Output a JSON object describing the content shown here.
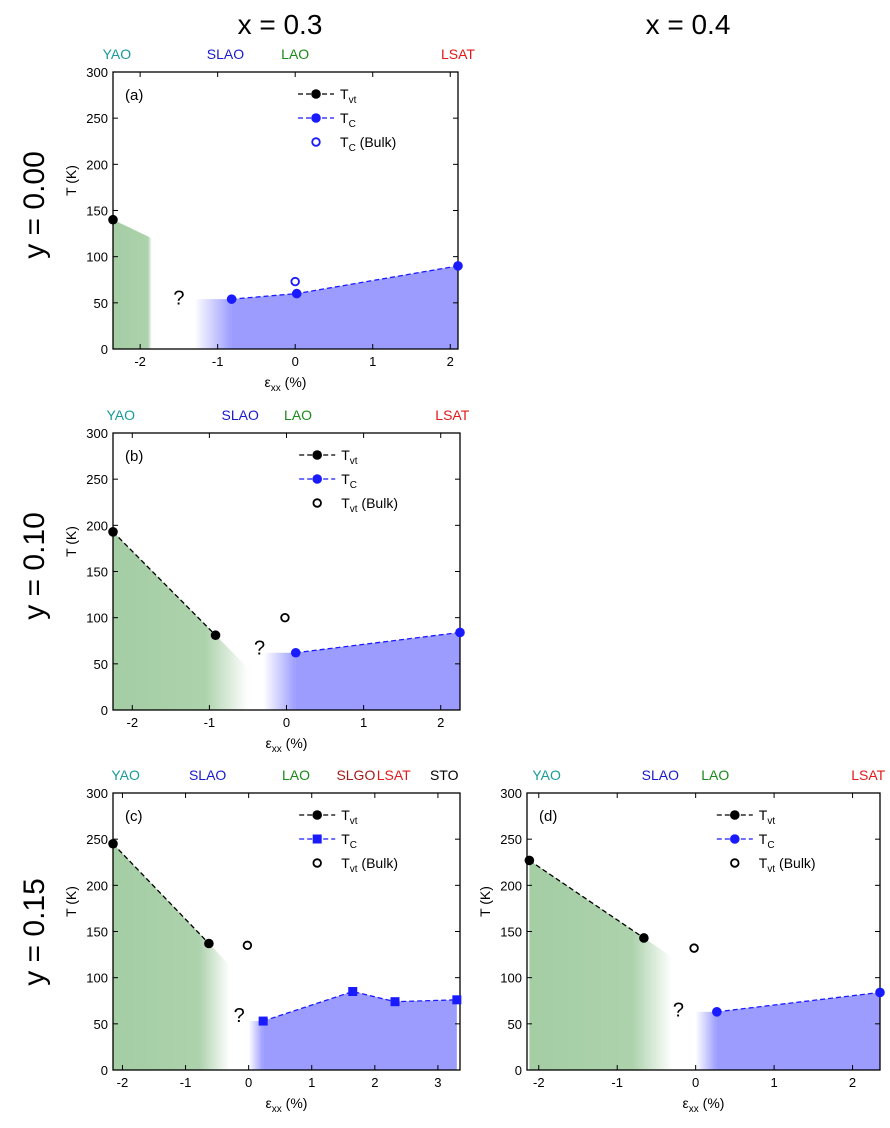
{
  "headers": {
    "col1": "x = 0.3",
    "col2": "x = 0.4"
  },
  "rows": [
    "y = 0.00",
    "y = 0.10",
    "y = 0.15"
  ],
  "colors": {
    "green": "#5aa55a",
    "blue": "#5a5aff",
    "tvt": "#000000",
    "tc": "#1a1aff",
    "YAO": "#1a9a9a",
    "SLAO": "#1a1acc",
    "LAO": "#1a8a1a",
    "LSAT": "#e01a1a",
    "SLGO": "#a01a1a",
    "STO": "#000000"
  },
  "chart_data": [
    {
      "type": "line",
      "panel": "(a)",
      "xlabel": "ε",
      "xlabel_sub": "xx",
      "xlabel_unit": "(%)",
      "ylabel": "T (K)",
      "xlim": [
        -2.35,
        2.1
      ],
      "ylim": [
        0,
        300
      ],
      "xticks": [
        -2,
        -1,
        0,
        1,
        2
      ],
      "yticks": [
        0,
        50,
        100,
        150,
        200,
        250,
        300
      ],
      "substrates": [
        {
          "name": "YAO",
          "x": -2.3
        },
        {
          "name": "SLAO",
          "x": -0.9
        },
        {
          "name": "LAO",
          "x": 0.0
        },
        {
          "name": "LSAT",
          "x": 2.1
        }
      ],
      "series": [
        {
          "name": "T",
          "sub": "vt",
          "marker": "circle",
          "color": "#000000",
          "points": [
            [
              -2.35,
              140
            ]
          ]
        },
        {
          "name": "T",
          "sub": "C",
          "marker": "circle",
          "color": "#1a1aff",
          "points": [
            [
              -0.82,
              54
            ],
            [
              0.02,
              60
            ],
            [
              2.1,
              90
            ]
          ]
        },
        {
          "name": "T",
          "sub": "C",
          "suffix": "(Bulk)",
          "marker": "open-circle",
          "color": "#1a1aff",
          "points": [
            [
              0.0,
              73
            ]
          ]
        }
      ],
      "green_region": {
        "x0": -2.35,
        "y0": 140,
        "x1": -1.85,
        "y1": 120
      },
      "blue_region": [
        [
          -0.82,
          54
        ],
        [
          0.02,
          60
        ],
        [
          2.1,
          90
        ]
      ],
      "blue_fade_from": -1.3,
      "question": {
        "text": "?",
        "x": -1.5,
        "y": 48
      }
    },
    {
      "type": "line",
      "panel": "(b)",
      "xlabel": "ε",
      "xlabel_sub": "xx",
      "xlabel_unit": "(%)",
      "ylabel": "T (K)",
      "xlim": [
        -2.25,
        2.25
      ],
      "ylim": [
        0,
        300
      ],
      "xticks": [
        -2,
        -1,
        0,
        1,
        2
      ],
      "yticks": [
        0,
        50,
        100,
        150,
        200,
        250,
        300
      ],
      "substrates": [
        {
          "name": "YAO",
          "x": -2.15
        },
        {
          "name": "SLAO",
          "x": -0.6
        },
        {
          "name": "LAO",
          "x": 0.15
        },
        {
          "name": "LSAT",
          "x": 2.15
        }
      ],
      "series": [
        {
          "name": "T",
          "sub": "vt",
          "marker": "circle",
          "color": "#000000",
          "points": [
            [
              -2.25,
              193
            ],
            [
              -0.92,
              81
            ]
          ]
        },
        {
          "name": "T",
          "sub": "C",
          "marker": "circle",
          "color": "#1a1aff",
          "points": [
            [
              0.12,
              62
            ],
            [
              2.25,
              84
            ]
          ]
        },
        {
          "name": "T",
          "sub": "vt",
          "suffix": "(Bulk)",
          "marker": "open-circle",
          "color": "#000000",
          "points": [
            [
              -0.02,
              100
            ]
          ]
        }
      ],
      "green_region": {
        "x0": -2.25,
        "y0": 193,
        "x1": -0.92,
        "y1": 81
      },
      "green_fade_to": -0.5,
      "blue_region": [
        [
          0.12,
          62
        ],
        [
          2.25,
          84
        ]
      ],
      "blue_fade_from": -0.3,
      "question": {
        "text": "?",
        "x": -0.35,
        "y": 60
      }
    },
    {
      "type": "line",
      "panel": "(c)",
      "xlabel": "ε",
      "xlabel_sub": "xx",
      "xlabel_unit": "(%)",
      "ylabel": "T (K)",
      "xlim": [
        -2.15,
        3.35
      ],
      "ylim": [
        0,
        300
      ],
      "xticks": [
        -2,
        -1,
        0,
        1,
        2,
        3
      ],
      "yticks": [
        0,
        50,
        100,
        150,
        200,
        250,
        300
      ],
      "substrates": [
        {
          "name": "YAO",
          "x": -1.95
        },
        {
          "name": "SLAO",
          "x": -0.65
        },
        {
          "name": "LAO",
          "x": 0.75
        },
        {
          "name": "SLGO",
          "x": 1.7
        },
        {
          "name": "LSAT",
          "x": 2.3
        },
        {
          "name": "STO",
          "x": 3.1
        }
      ],
      "series": [
        {
          "name": "T",
          "sub": "vt",
          "marker": "circle",
          "color": "#000000",
          "points": [
            [
              -2.15,
              245
            ],
            [
              -0.63,
              137
            ]
          ]
        },
        {
          "name": "T",
          "sub": "C",
          "marker": "square",
          "color": "#1a1aff",
          "points": [
            [
              0.23,
              53
            ],
            [
              1.65,
              85
            ],
            [
              2.32,
              74
            ],
            [
              3.3,
              76
            ]
          ]
        },
        {
          "name": "T",
          "sub": "vt",
          "suffix": "(Bulk)",
          "marker": "open-circle",
          "color": "#000000",
          "points": [
            [
              -0.02,
              135
            ]
          ]
        }
      ],
      "green_region": {
        "x0": -2.15,
        "y0": 245,
        "x1": -0.63,
        "y1": 137
      },
      "green_fade_to": -0.3,
      "blue_region": [
        [
          0.23,
          53
        ],
        [
          1.65,
          85
        ],
        [
          2.32,
          74
        ],
        [
          3.3,
          76
        ]
      ],
      "blue_fade_from": 0.0,
      "question": {
        "text": "?",
        "x": -0.15,
        "y": 52
      }
    },
    {
      "type": "line",
      "panel": "(d)",
      "xlabel": "ε",
      "xlabel_sub": "xx",
      "xlabel_unit": "(%)",
      "ylabel": "T (K)",
      "xlim": [
        -2.15,
        2.35
      ],
      "ylim": [
        0,
        300
      ],
      "xticks": [
        -2,
        -1,
        0,
        1,
        2
      ],
      "yticks": [
        0,
        50,
        100,
        150,
        200,
        250,
        300
      ],
      "substrates": [
        {
          "name": "YAO",
          "x": -1.9
        },
        {
          "name": "SLAO",
          "x": -0.45
        },
        {
          "name": "LAO",
          "x": 0.25
        },
        {
          "name": "LSAT",
          "x": 2.2
        }
      ],
      "series": [
        {
          "name": "T",
          "sub": "vt",
          "marker": "circle",
          "color": "#000000",
          "points": [
            [
              -2.12,
              227
            ],
            [
              -0.66,
              143
            ]
          ]
        },
        {
          "name": "T",
          "sub": "C",
          "marker": "circle",
          "color": "#1a1aff",
          "points": [
            [
              0.27,
              63
            ],
            [
              2.35,
              84
            ]
          ]
        },
        {
          "name": "T",
          "sub": "vt",
          "suffix": "(Bulk)",
          "marker": "open-circle",
          "color": "#000000",
          "points": [
            [
              -0.02,
              132
            ]
          ]
        }
      ],
      "green_region": {
        "x0": -2.12,
        "y0": 227,
        "x1": -0.66,
        "y1": 143
      },
      "green_fade_to": -0.3,
      "blue_region": [
        [
          0.27,
          63
        ],
        [
          2.35,
          84
        ]
      ],
      "blue_fade_from": 0.0,
      "question": {
        "text": "?",
        "x": -0.22,
        "y": 58
      }
    }
  ]
}
